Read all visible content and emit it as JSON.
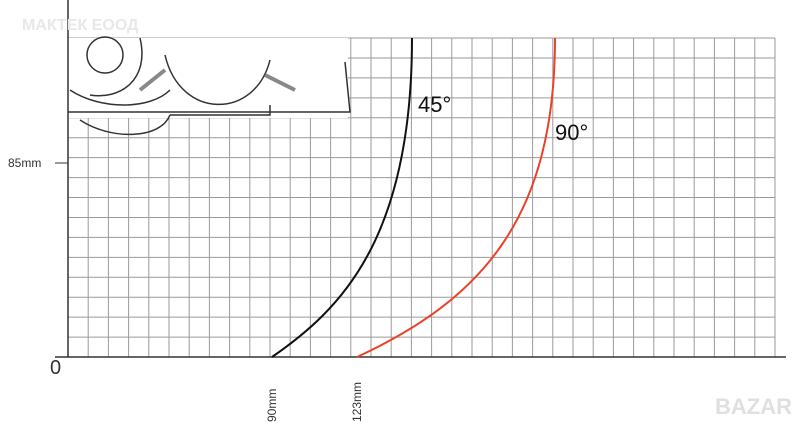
{
  "watermark": "МАКТЕК ЕООД",
  "axis": {
    "origin": "0",
    "y_label": "85mm",
    "x_labels": [
      "90mm",
      "123mm"
    ]
  },
  "curves": [
    {
      "label": "45°"
    },
    {
      "label": "90°"
    }
  ],
  "logo": "BAZAR"
}
